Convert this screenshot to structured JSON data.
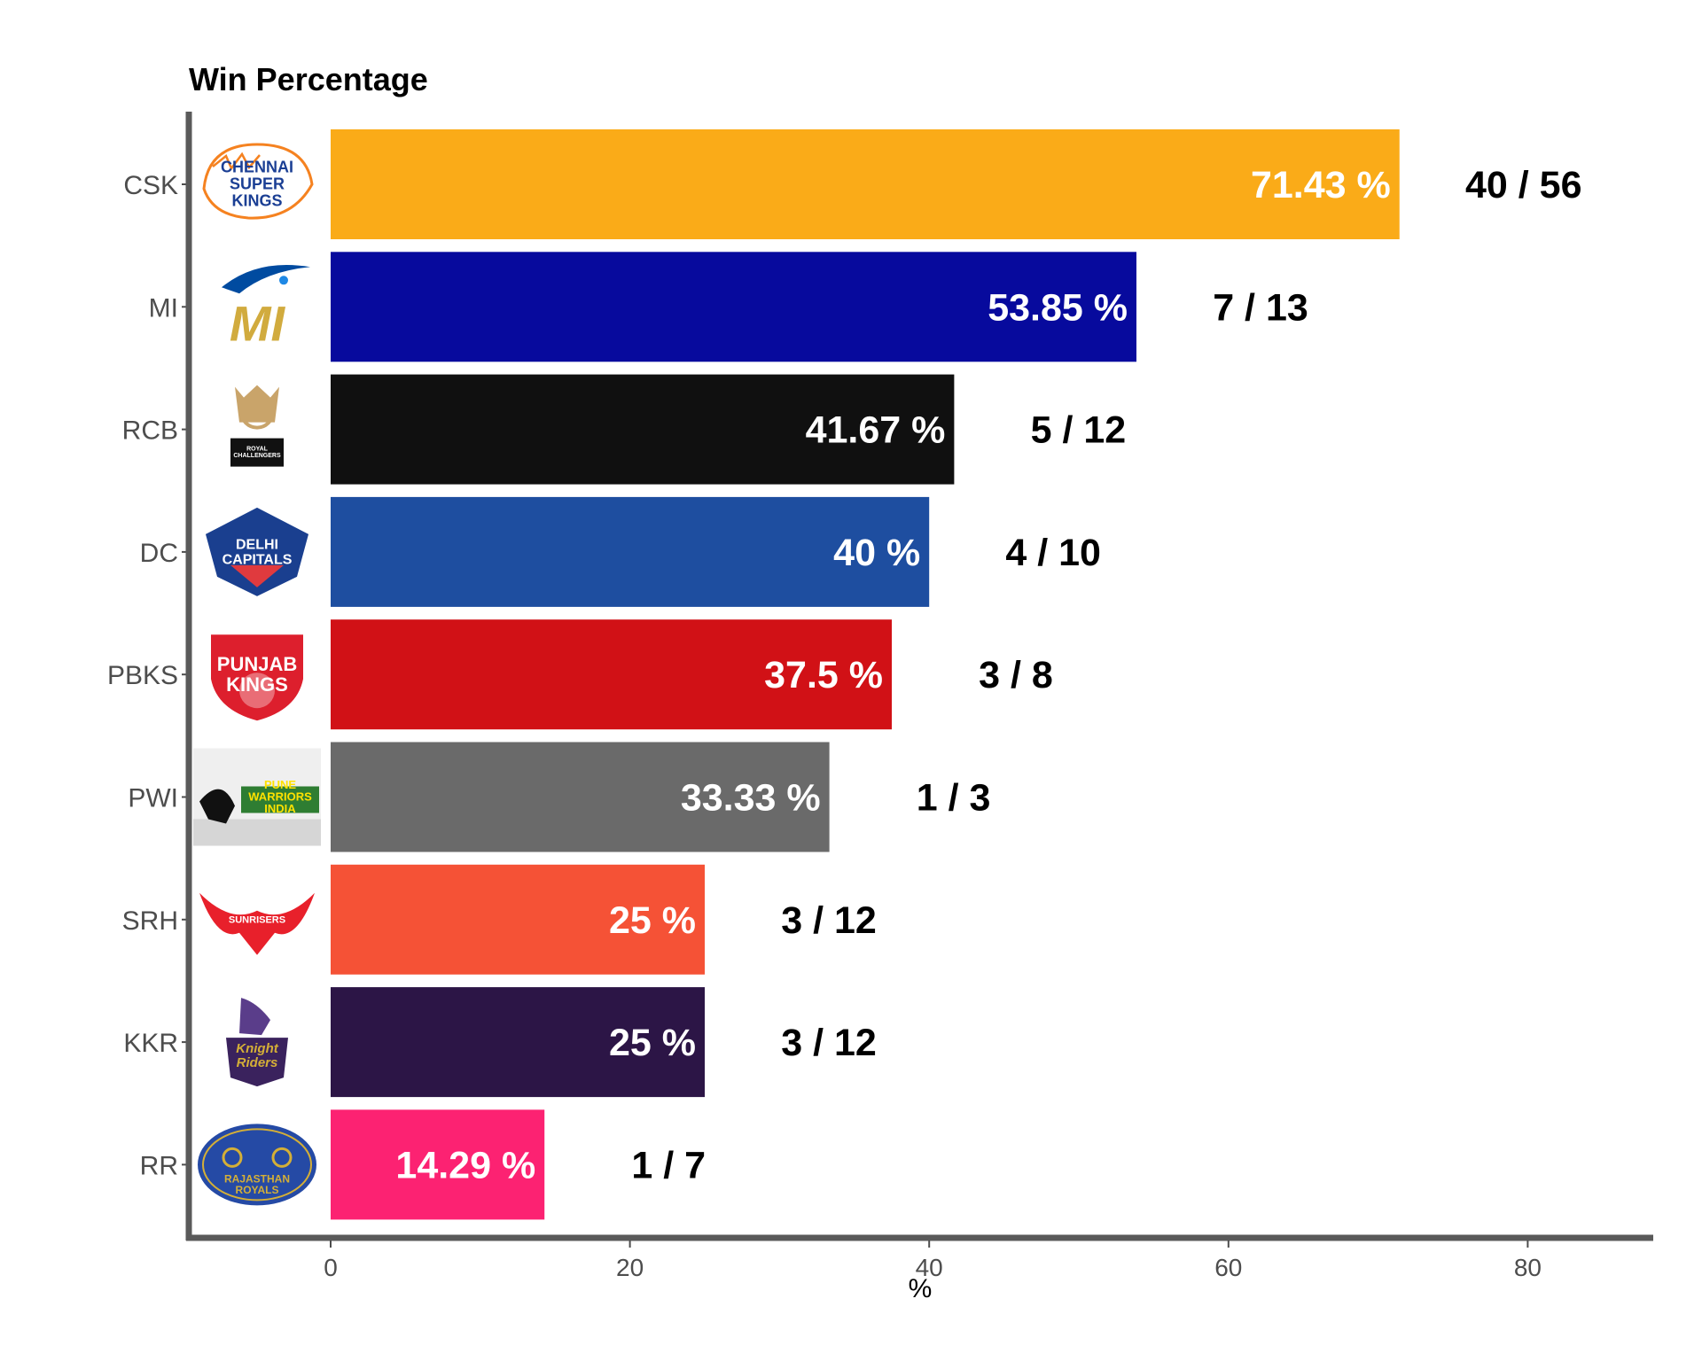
{
  "chart_data": {
    "type": "bar",
    "orientation": "horizontal",
    "title": "Win Percentage",
    "xlabel": "%",
    "ylabel": "",
    "xlim": [
      -9.5,
      88.2
    ],
    "xticks": [
      0,
      20,
      40,
      60,
      80
    ],
    "xtick_labels": [
      "0",
      "20",
      "40",
      "60",
      "80"
    ],
    "grid": false,
    "legend": "none",
    "categories": [
      "CSK",
      "MI",
      "RCB",
      "DC",
      "PBKS",
      "PWI",
      "SRH",
      "KKR",
      "RR"
    ],
    "values": [
      71.43,
      53.85,
      41.67,
      40,
      37.5,
      33.33,
      25,
      25,
      14.29
    ],
    "value_labels": [
      "71.43 %",
      "53.85 %",
      "41.67 %",
      "40 %",
      "37.5 %",
      "33.33 %",
      "25 %",
      "25 %",
      "14.29 %"
    ],
    "record_labels": [
      "40 / 56",
      "7 / 13",
      "5 / 12",
      "4 / 10",
      "3 / 8",
      "1 / 3",
      "3 / 12",
      "3 / 12",
      "1 / 7"
    ],
    "colors": [
      "#FAAB18",
      "#070A9D",
      "#101010",
      "#1E4EA0",
      "#D11116",
      "#6A6A6A",
      "#F55236",
      "#2C1546",
      "#FC2272"
    ],
    "logos": [
      {
        "icon": "csk-logo-icon",
        "lines": [
          "CHENNAI",
          "SUPER",
          "KINGS"
        ],
        "colors": [
          "#F58220",
          "#1B3F94"
        ]
      },
      {
        "icon": "mi-logo-icon",
        "lines": [
          "MI"
        ],
        "colors": [
          "#004BA0",
          "#D1AB3E"
        ]
      },
      {
        "icon": "rcb-logo-icon",
        "lines": [
          "ROYAL",
          "CHALLENGERS"
        ],
        "colors": [
          "#C9A46A",
          "#111111"
        ]
      },
      {
        "icon": "dc-logo-icon",
        "lines": [
          "DELHI",
          "CAPITALS"
        ],
        "colors": [
          "#1A3F8F",
          "#E03A3E"
        ]
      },
      {
        "icon": "pbks-logo-icon",
        "lines": [
          "PUNJAB",
          "KINGS"
        ],
        "colors": [
          "#DD1F2D",
          "#F3C44E"
        ]
      },
      {
        "icon": "pwi-logo-icon",
        "lines": [
          "PUNE",
          "WARRIORS",
          "INDIA"
        ],
        "colors": [
          "#2E7D32",
          "#E53935"
        ]
      },
      {
        "icon": "srh-logo-icon",
        "lines": [
          "SUNRISERS"
        ],
        "colors": [
          "#E8202B",
          "#F26522"
        ]
      },
      {
        "icon": "kkr-logo-icon",
        "lines": [
          "Knight",
          "Riders"
        ],
        "colors": [
          "#3A225D",
          "#D4AF37"
        ]
      },
      {
        "icon": "rr-logo-icon",
        "lines": [
          "RAJASTHAN",
          "ROYALS"
        ],
        "colors": [
          "#254AA5",
          "#D4AF37"
        ]
      }
    ]
  }
}
